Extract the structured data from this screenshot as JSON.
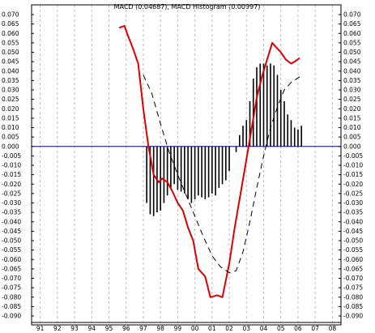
{
  "chart_data": {
    "type": "line",
    "title": "MACD (0.04687), MACD Histogram (0.00997)",
    "xlabel": "",
    "ylabel": "",
    "x_ticks": [
      "91",
      "92",
      "93",
      "94",
      "95",
      "96",
      "97",
      "98",
      "99",
      "00",
      "01",
      "02",
      "03",
      "04",
      "05",
      "06",
      "07",
      "08"
    ],
    "y_ticks": [
      "0.070",
      "0.065",
      "0.060",
      "0.055",
      "0.050",
      "0.045",
      "0.040",
      "0.035",
      "0.030",
      "0.025",
      "0.020",
      "0.015",
      "0.010",
      "0.005",
      "0.000",
      "-0.005",
      "-0.010",
      "-0.015",
      "-0.020",
      "-0.025",
      "-0.030",
      "-0.035",
      "-0.040",
      "-0.045",
      "-0.050",
      "-0.055",
      "-0.060",
      "-0.065",
      "-0.070",
      "-0.075",
      "-0.080",
      "-0.085",
      "-0.090"
    ],
    "xlim": [
      1990.5,
      2008.5
    ],
    "ylim": [
      -0.09,
      0.07
    ],
    "grid": {
      "vertical": true,
      "horizontal": false
    },
    "legend": "none",
    "colors": {
      "macd": "#dd0000",
      "signal": "#000000",
      "histogram": "#000000",
      "zero_line": "#000080",
      "grid": "#bbbbbb"
    },
    "series": [
      {
        "name": "MACD",
        "style": "solid",
        "x": [
          1995.6,
          1995.9,
          1996.1,
          1996.4,
          1996.7,
          1997.0,
          1997.3,
          1997.6,
          1997.9,
          1998.1,
          1998.4,
          1998.7,
          1999.0,
          1999.3,
          1999.6,
          1999.9,
          2000.2,
          2000.6,
          2000.9,
          2001.3,
          2001.6,
          2002.0,
          2002.3,
          2002.6,
          2002.9,
          2003.2,
          2003.4,
          2003.6,
          2003.9,
          2004.2,
          2004.5,
          2004.8,
          2005.0,
          2005.3,
          2005.6,
          2005.8,
          2006.1
        ],
        "values": [
          0.063,
          0.064,
          0.059,
          0.052,
          0.044,
          0.02,
          0.0,
          -0.015,
          -0.019,
          -0.017,
          -0.019,
          -0.024,
          -0.03,
          -0.034,
          -0.043,
          -0.05,
          -0.065,
          -0.069,
          -0.08,
          -0.079,
          -0.08,
          -0.062,
          -0.044,
          -0.028,
          -0.012,
          0.004,
          0.015,
          0.026,
          0.037,
          0.046,
          0.055,
          0.052,
          0.05,
          0.046,
          0.044,
          0.045,
          0.047
        ]
      },
      {
        "name": "Signal",
        "style": "dashed",
        "x": [
          1997.0,
          1997.5,
          1998.0,
          1998.5,
          1999.0,
          1999.5,
          2000.0,
          2000.5,
          2001.0,
          2001.5,
          2002.0,
          2002.4,
          2002.8,
          2003.2,
          2003.6,
          2004.0,
          2004.4,
          2004.8,
          2005.2,
          2005.6,
          2006.1
        ],
        "values": [
          0.038,
          0.028,
          0.012,
          -0.003,
          -0.015,
          -0.026,
          -0.037,
          -0.048,
          -0.058,
          -0.064,
          -0.067,
          -0.066,
          -0.056,
          -0.04,
          -0.022,
          -0.005,
          0.01,
          0.021,
          0.03,
          0.034,
          0.037
        ]
      }
    ],
    "histogram": {
      "name": "Histogram",
      "x": [
        1997.2,
        1997.4,
        1997.6,
        1997.8,
        1998.0,
        1998.2,
        1998.4,
        1998.6,
        1998.8,
        1999.0,
        1999.2,
        1999.4,
        1999.6,
        1999.8,
        2000.0,
        2000.2,
        2000.4,
        2000.6,
        2000.8,
        2001.0,
        2001.2,
        2001.4,
        2001.6,
        2001.8,
        2002.0,
        2002.4,
        2002.6,
        2002.8,
        2003.0,
        2003.2,
        2003.4,
        2003.6,
        2003.8,
        2004.0,
        2004.2,
        2004.4,
        2004.6,
        2004.8,
        2005.0,
        2005.2,
        2005.4,
        2005.6,
        2005.8,
        2006.0,
        2006.2
      ],
      "values": [
        -0.03,
        -0.036,
        -0.037,
        -0.035,
        -0.034,
        -0.03,
        -0.026,
        -0.022,
        -0.02,
        -0.023,
        -0.024,
        -0.025,
        -0.028,
        -0.03,
        -0.028,
        -0.026,
        -0.027,
        -0.028,
        -0.027,
        -0.025,
        -0.026,
        -0.022,
        -0.02,
        -0.018,
        -0.013,
        -0.003,
        0.006,
        0.011,
        0.014,
        0.024,
        0.036,
        0.042,
        0.044,
        0.044,
        0.043,
        0.044,
        0.043,
        0.038,
        0.03,
        0.024,
        0.017,
        0.014,
        0.01,
        0.009,
        0.011
      ]
    }
  }
}
